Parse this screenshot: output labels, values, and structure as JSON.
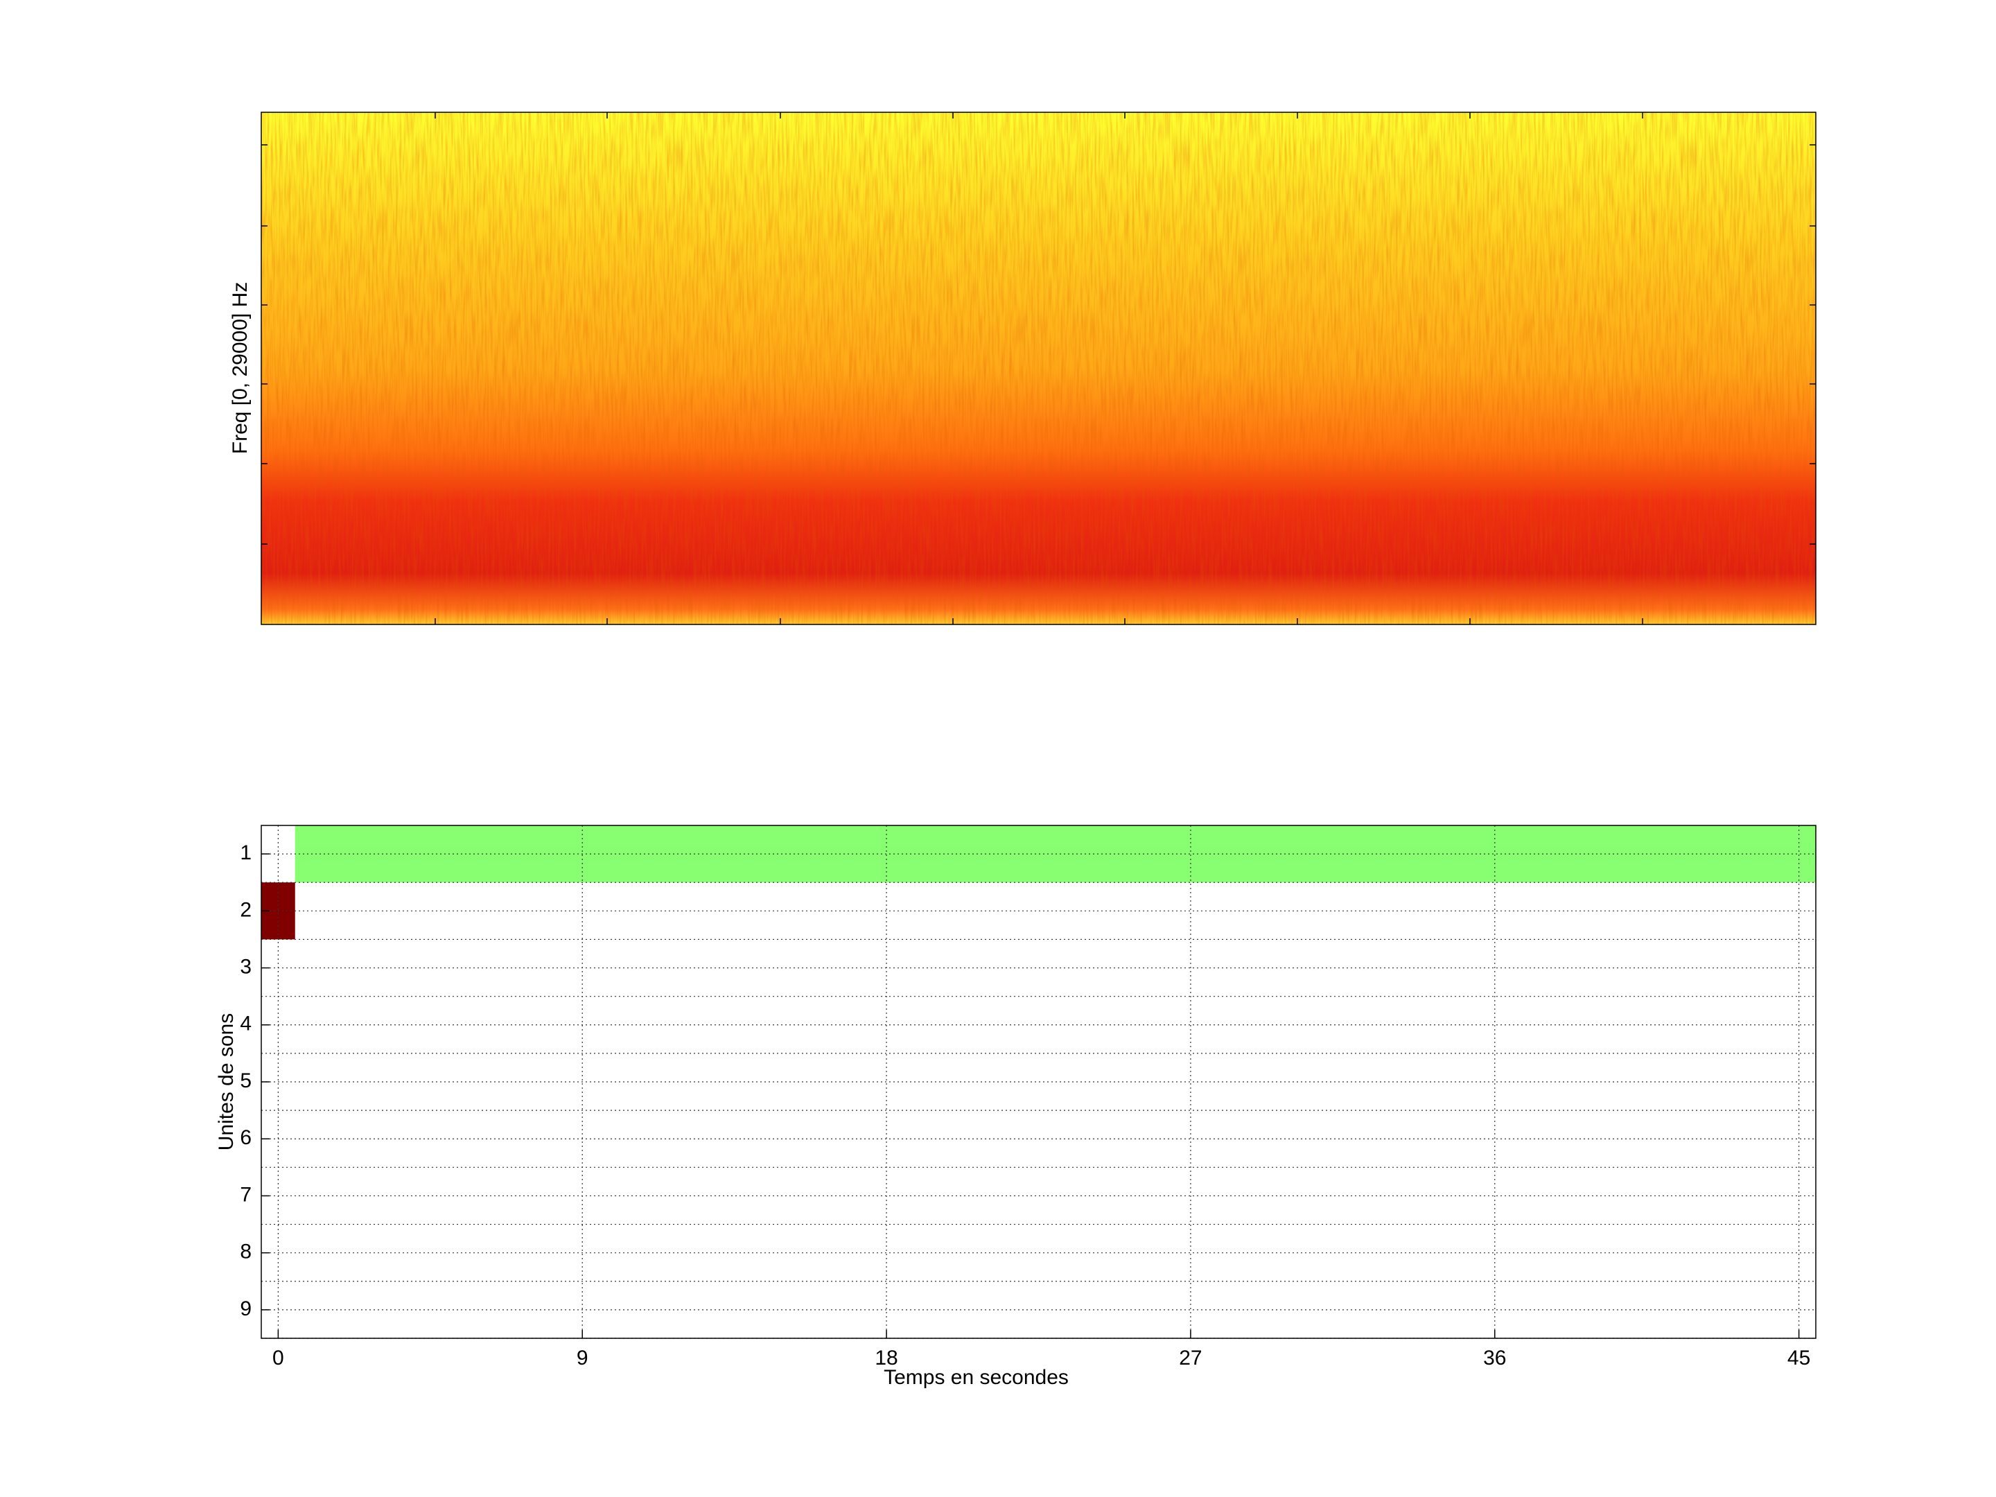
{
  "chart_data": [
    {
      "type": "spectrogram",
      "ylabel": "Freq [0, 29000] Hz"
    },
    {
      "type": "timeline",
      "xlabel": "Temps en secondes",
      "ylabel": "Unites de sons",
      "xlim": [
        -0.5,
        45.5
      ],
      "xticks": [
        0,
        9,
        18,
        27,
        36,
        45
      ],
      "ylim": [
        9.5,
        0.5
      ],
      "yticks": [
        1,
        2,
        3,
        4,
        5,
        6,
        7,
        8,
        9
      ],
      "grid": true,
      "segments": [
        {
          "row": 1,
          "start": 0.5,
          "end": 45.5,
          "color": "#88ff70"
        },
        {
          "row": 2,
          "start": -0.5,
          "end": 0.5,
          "color": "#800000"
        }
      ]
    }
  ]
}
